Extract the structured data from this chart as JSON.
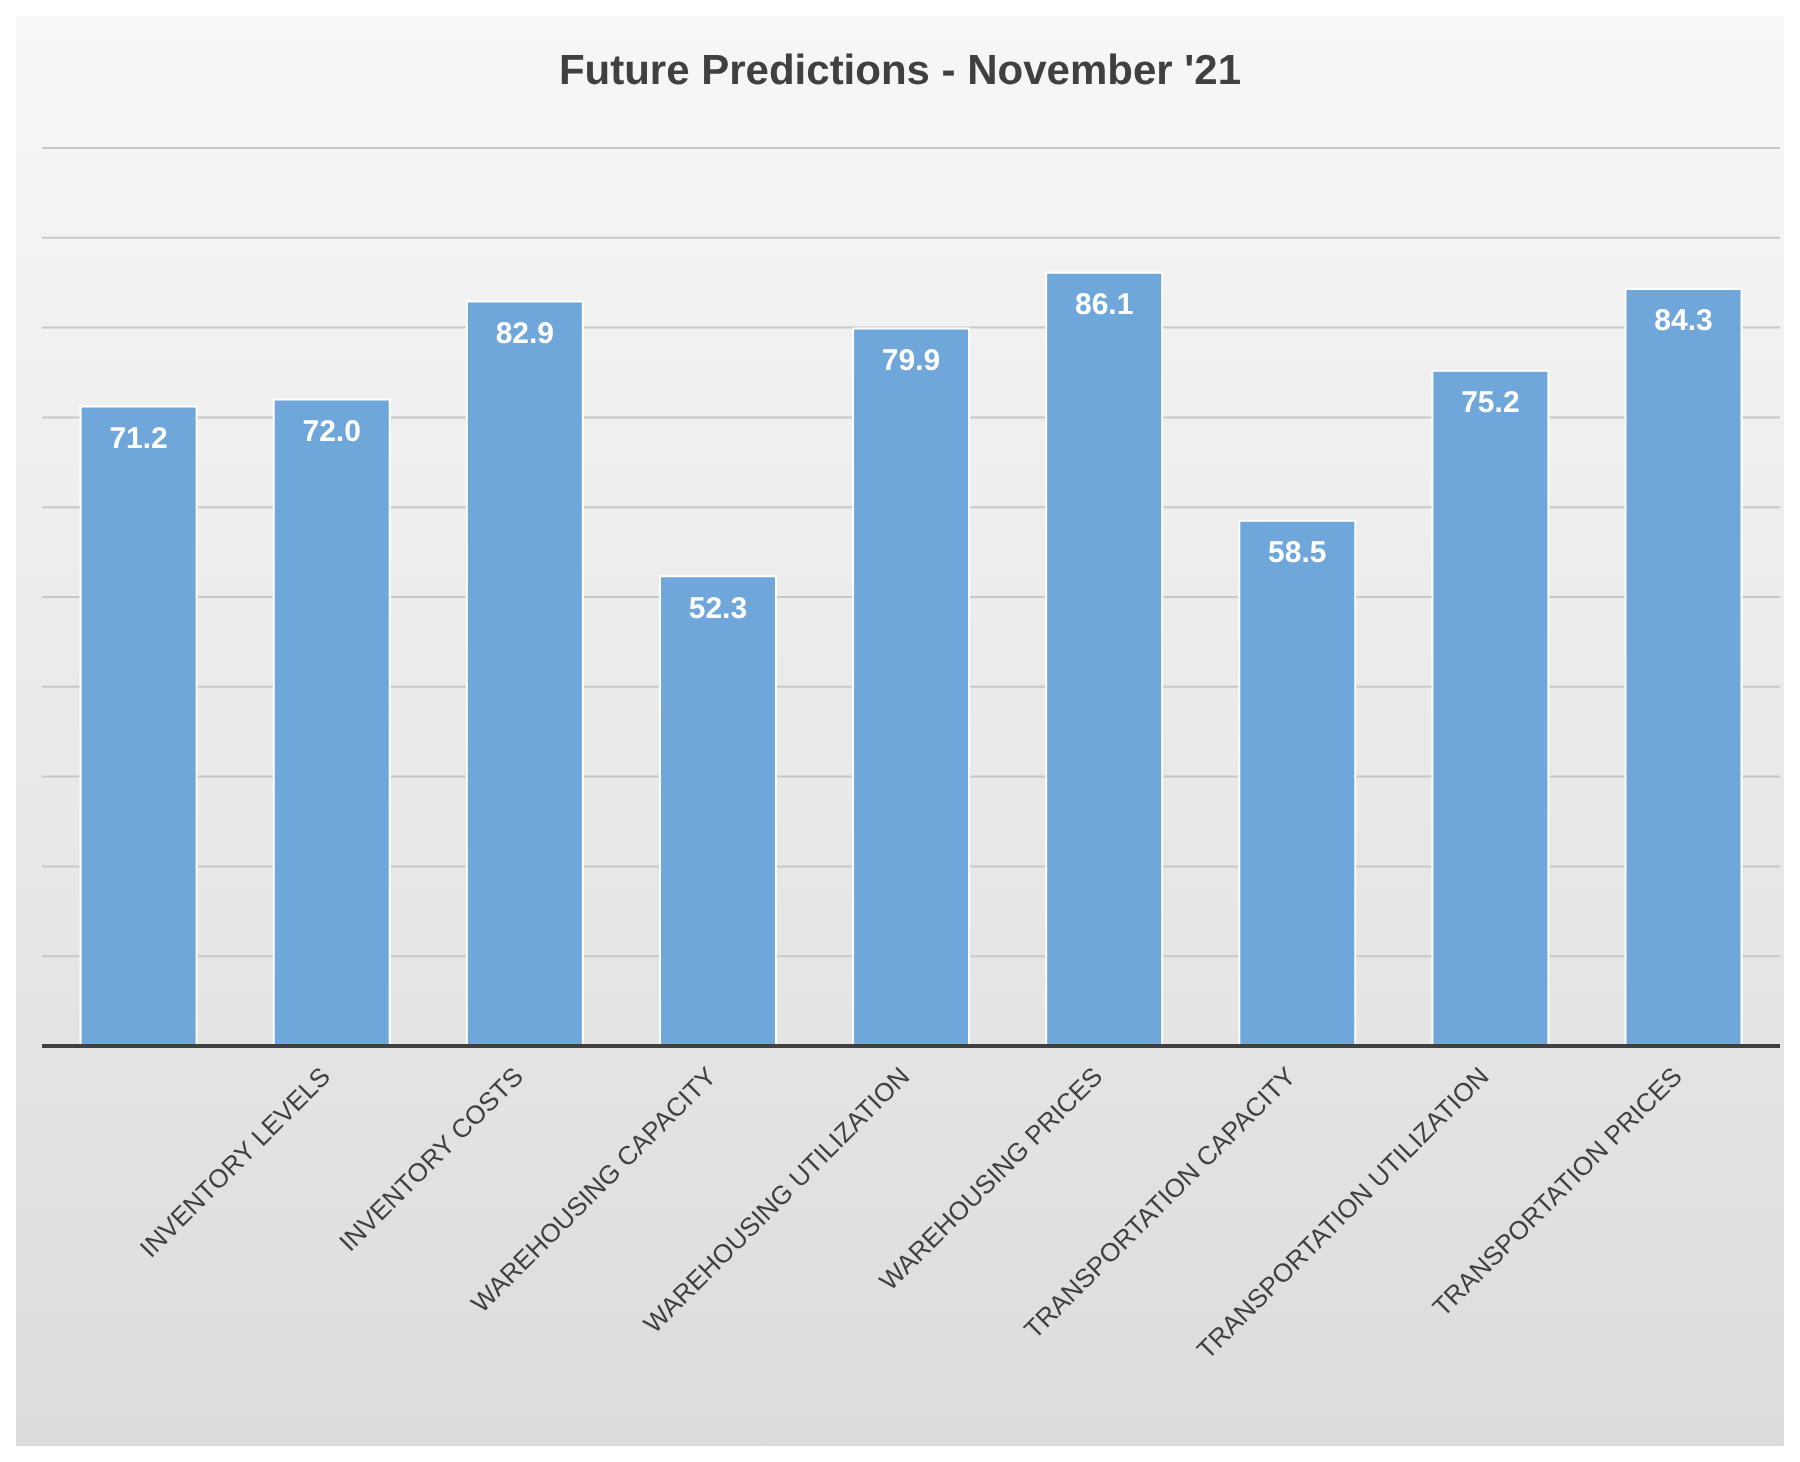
{
  "chart_data": {
    "type": "bar",
    "title": "Future Predictions - November '21",
    "categories": [
      null,
      "INVENTORY LEVELS",
      "INVENTORY COSTS",
      "WAREHOUSING CAPACITY",
      "WAREHOUSING UTILIZATION",
      "WAREHOUSING PRICES",
      "TRANSPORTATION CAPACITY",
      "TRANSPORTATION UTILIZATION",
      "TRANSPORTATION PRICES"
    ],
    "values": [
      71.2,
      72.0,
      82.9,
      52.3,
      79.9,
      86.1,
      58.5,
      75.2,
      84.3
    ],
    "value_labels": [
      "71.2",
      "72.0",
      "82.9",
      "52.3",
      "79.9",
      "86.1",
      "58.5",
      "75.2",
      "84.3"
    ],
    "color": "#6fa7da",
    "ylim": [
      0,
      100
    ],
    "grid": "y",
    "tick_labels": "x"
  }
}
